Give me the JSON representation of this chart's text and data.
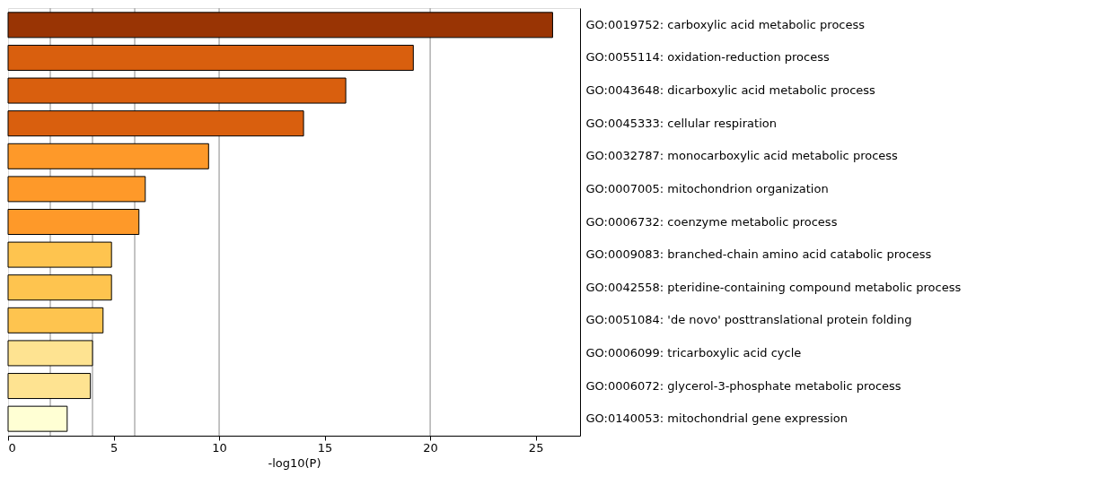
{
  "chart_data": {
    "type": "bar",
    "orientation": "horizontal",
    "xlabel": "-log10(P)",
    "categories": [
      "GO:0019752: carboxylic acid metabolic process",
      "GO:0055114: oxidation-reduction process",
      "GO:0043648: dicarboxylic acid metabolic process",
      "GO:0045333: cellular respiration",
      "GO:0032787: monocarboxylic acid metabolic process",
      "GO:0007005: mitochondrion organization",
      "GO:0006732: coenzyme metabolic process",
      "GO:0009083: branched-chain amino acid catabolic process",
      "GO:0042558: pteridine-containing compound metabolic process",
      "GO:0051084: 'de novo' posttranslational protein folding",
      "GO:0006099: tricarboxylic acid cycle",
      "GO:0006072: glycerol-3-phosphate metabolic process",
      "GO:0140053: mitochondrial gene expression"
    ],
    "values": [
      25.8,
      19.2,
      16.0,
      14.0,
      9.5,
      6.5,
      6.2,
      4.9,
      4.9,
      4.5,
      4.0,
      3.9,
      2.8
    ],
    "colors": [
      "#993404",
      "#d95f0e",
      "#d95f0e",
      "#d95f0e",
      "#fe9929",
      "#fe9929",
      "#fe9929",
      "#fec44f",
      "#fec44f",
      "#fec44f",
      "#fee391",
      "#fee391",
      "#ffffd4"
    ],
    "xlim": [
      0,
      27.1
    ],
    "xticks": [
      0,
      5,
      10,
      15,
      20,
      25
    ],
    "ref_lines": [
      {
        "axis": "x",
        "value": 2,
        "color": "#b0b0b0"
      },
      {
        "axis": "x",
        "value": 4,
        "color": "#b0b0b0"
      },
      {
        "axis": "x",
        "value": 6,
        "color": "#b0b0b0"
      },
      {
        "axis": "x",
        "value": 10,
        "color": "#b0b0b0"
      },
      {
        "axis": "x",
        "value": 20,
        "color": "#b0b0b0"
      }
    ],
    "grid": false
  }
}
